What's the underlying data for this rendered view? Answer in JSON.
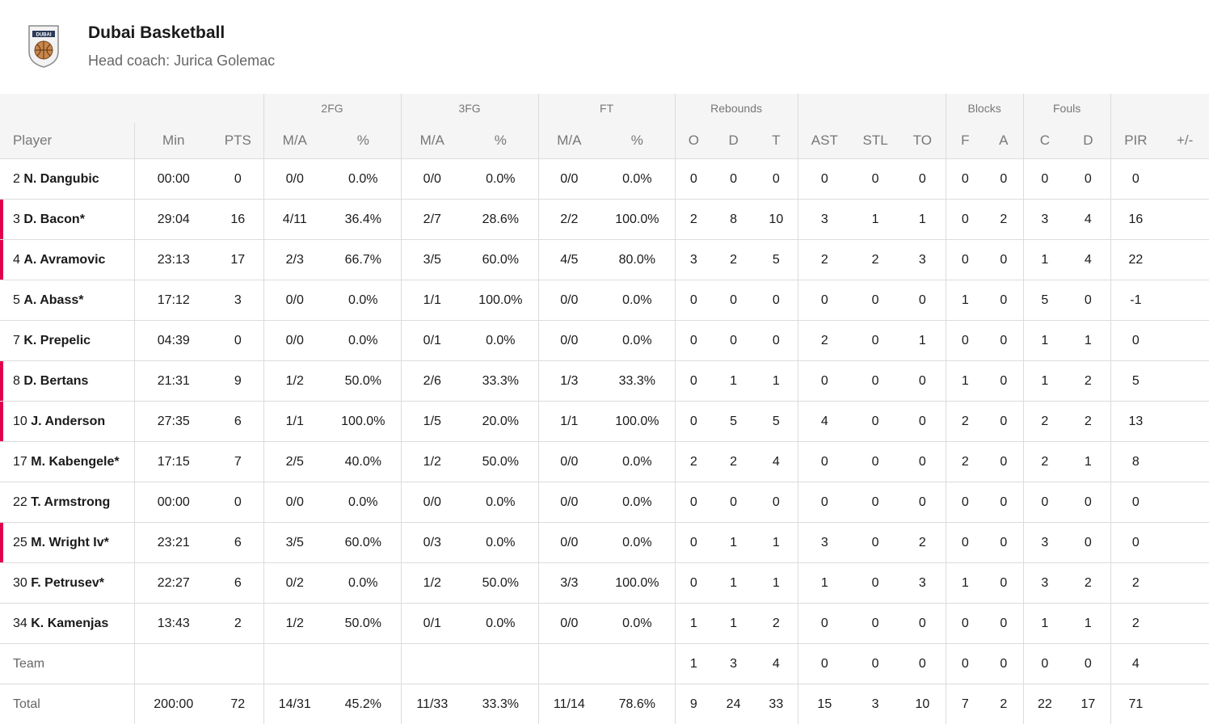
{
  "team": {
    "name": "Dubai Basketball",
    "coach": "Head coach: Jurica Golemac",
    "logo_text": "DUBAI"
  },
  "groups": {
    "fg2": "2FG",
    "fg3": "3FG",
    "ft": "FT",
    "rebounds": "Rebounds",
    "blocks": "Blocks",
    "fouls": "Fouls"
  },
  "columns": [
    "Player",
    "Min",
    "PTS",
    "M/A",
    "%",
    "M/A",
    "%",
    "M/A",
    "%",
    "O",
    "D",
    "T",
    "AST",
    "STL",
    "TO",
    "F",
    "A",
    "C",
    "D",
    "PIR",
    "+/-"
  ],
  "players": [
    {
      "num": "2",
      "name": "N. Dangubic",
      "starter": false,
      "stats": [
        "00:00",
        "0",
        "0/0",
        "0.0%",
        "0/0",
        "0.0%",
        "0/0",
        "0.0%",
        "0",
        "0",
        "0",
        "0",
        "0",
        "0",
        "0",
        "0",
        "0",
        "0",
        "0",
        ""
      ]
    },
    {
      "num": "3",
      "name": "D. Bacon*",
      "starter": true,
      "stats": [
        "29:04",
        "16",
        "4/11",
        "36.4%",
        "2/7",
        "28.6%",
        "2/2",
        "100.0%",
        "2",
        "8",
        "10",
        "3",
        "1",
        "1",
        "0",
        "2",
        "3",
        "4",
        "16",
        ""
      ]
    },
    {
      "num": "4",
      "name": "A. Avramovic",
      "starter": true,
      "stats": [
        "23:13",
        "17",
        "2/3",
        "66.7%",
        "3/5",
        "60.0%",
        "4/5",
        "80.0%",
        "3",
        "2",
        "5",
        "2",
        "2",
        "3",
        "0",
        "0",
        "1",
        "4",
        "22",
        ""
      ]
    },
    {
      "num": "5",
      "name": "A. Abass*",
      "starter": false,
      "stats": [
        "17:12",
        "3",
        "0/0",
        "0.0%",
        "1/1",
        "100.0%",
        "0/0",
        "0.0%",
        "0",
        "0",
        "0",
        "0",
        "0",
        "0",
        "1",
        "0",
        "5",
        "0",
        "-1",
        ""
      ]
    },
    {
      "num": "7",
      "name": "K. Prepelic",
      "starter": false,
      "stats": [
        "04:39",
        "0",
        "0/0",
        "0.0%",
        "0/1",
        "0.0%",
        "0/0",
        "0.0%",
        "0",
        "0",
        "0",
        "2",
        "0",
        "1",
        "0",
        "0",
        "1",
        "1",
        "0",
        ""
      ]
    },
    {
      "num": "8",
      "name": "D. Bertans",
      "starter": true,
      "stats": [
        "21:31",
        "9",
        "1/2",
        "50.0%",
        "2/6",
        "33.3%",
        "1/3",
        "33.3%",
        "0",
        "1",
        "1",
        "0",
        "0",
        "0",
        "1",
        "0",
        "1",
        "2",
        "5",
        ""
      ]
    },
    {
      "num": "10",
      "name": "J. Anderson",
      "starter": true,
      "stats": [
        "27:35",
        "6",
        "1/1",
        "100.0%",
        "1/5",
        "20.0%",
        "1/1",
        "100.0%",
        "0",
        "5",
        "5",
        "4",
        "0",
        "0",
        "2",
        "0",
        "2",
        "2",
        "13",
        ""
      ]
    },
    {
      "num": "17",
      "name": "M. Kabengele*",
      "starter": false,
      "stats": [
        "17:15",
        "7",
        "2/5",
        "40.0%",
        "1/2",
        "50.0%",
        "0/0",
        "0.0%",
        "2",
        "2",
        "4",
        "0",
        "0",
        "0",
        "2",
        "0",
        "2",
        "1",
        "8",
        ""
      ]
    },
    {
      "num": "22",
      "name": "T. Armstrong",
      "starter": false,
      "stats": [
        "00:00",
        "0",
        "0/0",
        "0.0%",
        "0/0",
        "0.0%",
        "0/0",
        "0.0%",
        "0",
        "0",
        "0",
        "0",
        "0",
        "0",
        "0",
        "0",
        "0",
        "0",
        "0",
        ""
      ]
    },
    {
      "num": "25",
      "name": "M. Wright Iv*",
      "starter": true,
      "stats": [
        "23:21",
        "6",
        "3/5",
        "60.0%",
        "0/3",
        "0.0%",
        "0/0",
        "0.0%",
        "0",
        "1",
        "1",
        "3",
        "0",
        "2",
        "0",
        "0",
        "3",
        "0",
        "0",
        ""
      ]
    },
    {
      "num": "30",
      "name": "F. Petrusev*",
      "starter": false,
      "stats": [
        "22:27",
        "6",
        "0/2",
        "0.0%",
        "1/2",
        "50.0%",
        "3/3",
        "100.0%",
        "0",
        "1",
        "1",
        "1",
        "0",
        "3",
        "1",
        "0",
        "3",
        "2",
        "2",
        ""
      ]
    },
    {
      "num": "34",
      "name": "K. Kamenjas",
      "starter": false,
      "stats": [
        "13:43",
        "2",
        "1/2",
        "50.0%",
        "0/1",
        "0.0%",
        "0/0",
        "0.0%",
        "1",
        "1",
        "2",
        "0",
        "0",
        "0",
        "0",
        "0",
        "1",
        "1",
        "2",
        ""
      ]
    }
  ],
  "team_row": {
    "label": "Team",
    "stats": [
      "",
      "",
      "",
      "",
      "",
      "",
      "",
      "",
      "1",
      "3",
      "4",
      "0",
      "0",
      "0",
      "0",
      "0",
      "0",
      "0",
      "4",
      ""
    ]
  },
  "total_row": {
    "label": "Total",
    "stats": [
      "200:00",
      "72",
      "14/31",
      "45.2%",
      "11/33",
      "33.3%",
      "11/14",
      "78.6%",
      "9",
      "24",
      "33",
      "15",
      "3",
      "10",
      "7",
      "2",
      "22",
      "17",
      "71",
      ""
    ]
  },
  "colors": {
    "starter_marker": "#e0004d",
    "header_bg": "#f5f5f5",
    "border": "#dcdcdc"
  }
}
